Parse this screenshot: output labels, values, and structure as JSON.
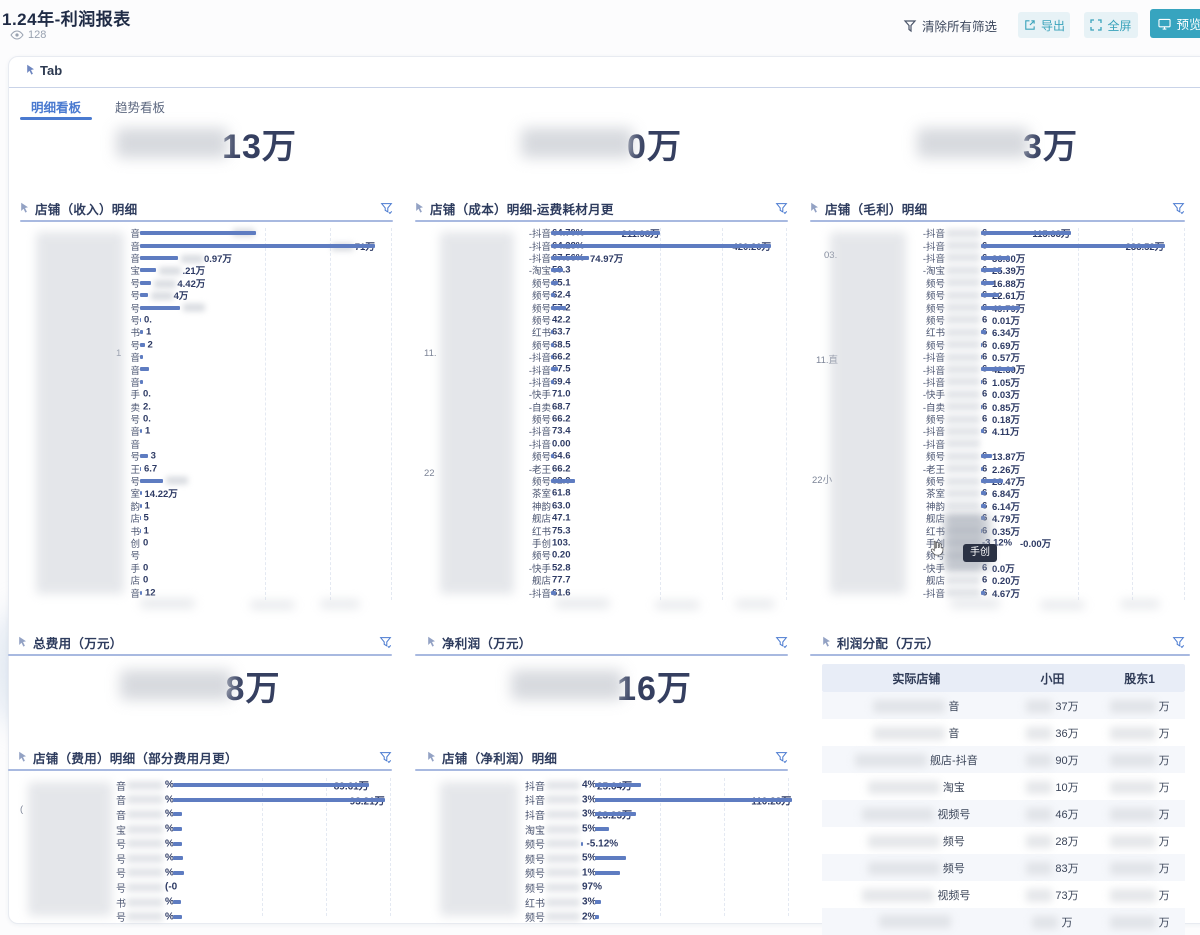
{
  "header": {
    "title": "1.24年-利润报表",
    "views": "128",
    "buttons": {
      "clear": "清除所有筛选",
      "export": "导出",
      "fullscreen": "全屏",
      "preview": "预览"
    }
  },
  "tabs": {
    "section_label": "Tab",
    "items": [
      {
        "label": "明细看板",
        "active": true
      },
      {
        "label": "趋势看板",
        "active": false
      }
    ]
  },
  "stats": {
    "revenue": {
      "suffix": "13万"
    },
    "cost": {
      "suffix": "0万"
    },
    "gross": {
      "suffix": "3万"
    },
    "expense": {
      "title": "总费用（万元）",
      "suffix": "8万"
    },
    "net": {
      "title": "净利润（万元）",
      "suffix": "16万"
    }
  },
  "panels": {
    "revenue": {
      "title": "店铺（收入）明细",
      "type": "bar",
      "axis_fragment": "1",
      "rows": [
        {
          "l": "音",
          "v": "",
          "b": 0.46,
          "vb": true
        },
        {
          "l": "音",
          "v": "71万",
          "b": 0.93,
          "vb": true
        },
        {
          "l": "音",
          "v": "0.97万",
          "b": 0.15,
          "vb": true
        },
        {
          "l": "宝",
          "v": ".21万",
          "b": 0.065,
          "vb": true
        },
        {
          "l": "号",
          "v": "4.42万",
          "b": 0.045,
          "vb": true
        },
        {
          "l": "号",
          "v": "4万",
          "b": 0.03,
          "vb": true
        },
        {
          "l": "号",
          "v": "",
          "b": 0.16,
          "vb": true
        },
        {
          "l": "号",
          "v": "0.",
          "b": 0.004
        },
        {
          "l": "书",
          "v": "1",
          "b": 0.012
        },
        {
          "l": "号",
          "v": "2",
          "b": 0.018
        },
        {
          "l": "音",
          "v": "",
          "b": 0.01
        },
        {
          "l": "音",
          "v": "",
          "b": 0.035
        },
        {
          "l": "音",
          "v": "",
          "b": 0.012
        },
        {
          "l": "手",
          "v": "0.",
          "b": 0
        },
        {
          "l": "卖",
          "v": "2.",
          "b": 0
        },
        {
          "l": "号",
          "v": "0.",
          "b": 0
        },
        {
          "l": "音",
          "v": "1",
          "b": 0.008
        },
        {
          "l": "音",
          "v": "",
          "b": 0
        },
        {
          "l": "号",
          "v": "3",
          "b": 0.03
        },
        {
          "l": "王",
          "v": "6.7",
          "b": 0.004
        },
        {
          "l": "号",
          "v": "",
          "b": 0.09,
          "vb": true
        },
        {
          "l": "室",
          "v": "14.22万",
          "b": 0.006
        },
        {
          "l": "韵",
          "v": "1",
          "b": 0.006
        },
        {
          "l": "店",
          "v": "5",
          "b": 0.002
        },
        {
          "l": "书",
          "v": "1",
          "b": 0.002
        },
        {
          "l": "创",
          "v": "0",
          "b": 0
        },
        {
          "l": "号",
          "v": "",
          "b": 0
        },
        {
          "l": "手",
          "v": "0",
          "b": 0
        },
        {
          "l": "店",
          "v": "0",
          "b": 0
        },
        {
          "l": "音",
          "v": "12",
          "b": 0.008
        }
      ]
    },
    "cost": {
      "title": "店铺（成本）明细-运费耗材月更",
      "type": "bar",
      "axis_fragments": [
        "11.",
        "22"
      ],
      "rows": [
        {
          "l": "-抖音",
          "p": "64.70%",
          "v": "211.98万",
          "b": 0.46
        },
        {
          "l": "-抖音",
          "p": "64.28%",
          "v": "420.20万",
          "b": 0.93
        },
        {
          "l": "-抖音",
          "p": "67.56%",
          "v": "74.97万",
          "b": 0.16
        },
        {
          "l": "-淘宝",
          "p": "59.3",
          "v": "",
          "b": 0.05
        },
        {
          "l": "频号",
          "p": "65.1",
          "v": "",
          "b": 0.03
        },
        {
          "l": "频号",
          "p": "62.4",
          "v": "",
          "b": 0.015
        },
        {
          "l": "频号",
          "p": "57.2",
          "v": "",
          "b": 0.065
        },
        {
          "l": "频号",
          "p": "42.2",
          "v": "",
          "b": 0
        },
        {
          "l": "红书",
          "p": "63.7",
          "v": "",
          "b": 0.008
        },
        {
          "l": "频号",
          "p": "68.5",
          "v": "",
          "b": 0.012
        },
        {
          "l": "-抖音",
          "p": "66.2",
          "v": "",
          "b": 0.008
        },
        {
          "l": "-抖音",
          "p": "67.5",
          "v": "",
          "b": 0.03
        },
        {
          "l": "-抖音",
          "p": "69.4",
          "v": "",
          "b": 0.012
        },
        {
          "l": "-快手",
          "p": "71.0",
          "v": "",
          "b": 0
        },
        {
          "l": "-自卖",
          "p": "68.7",
          "v": "",
          "b": 0
        },
        {
          "l": "频号",
          "p": "66.2",
          "v": "",
          "b": 0
        },
        {
          "l": "-抖音",
          "p": "73.4",
          "v": "",
          "b": 0
        },
        {
          "l": "-抖音",
          "p": "0.00",
          "v": "",
          "b": 0
        },
        {
          "l": "频号",
          "p": "64.6",
          "v": "",
          "b": 0.012
        },
        {
          "l": "-老王",
          "p": "66.2",
          "v": "",
          "b": 0
        },
        {
          "l": "频号",
          "p": "62.0",
          "v": "",
          "b": 0.1
        },
        {
          "l": "茶室",
          "p": "61.8",
          "v": "",
          "b": 0
        },
        {
          "l": "神韵",
          "p": "63.0",
          "v": "",
          "b": 0
        },
        {
          "l": "舰店",
          "p": "47.1",
          "v": "",
          "b": 0
        },
        {
          "l": "红书",
          "p": "75.3",
          "v": "",
          "b": 0
        },
        {
          "l": "手创",
          "p": "103.",
          "v": "",
          "b": 0
        },
        {
          "l": "频号",
          "p": "0.20",
          "v": "",
          "b": 0
        },
        {
          "l": "-快手",
          "p": "52.8",
          "v": "",
          "b": 0
        },
        {
          "l": "舰店",
          "p": "77.7",
          "v": "",
          "b": 0
        },
        {
          "l": "-抖音",
          "p": "61.6",
          "v": "",
          "b": 0.02
        }
      ]
    },
    "gross": {
      "title": "店铺（毛利）明细",
      "type": "bar",
      "axis_fragments": [
        "03.",
        "11.直",
        "22小"
      ],
      "tooltip": "手创",
      "rows": [
        {
          "l": "-抖音",
          "p": "6",
          "v": "115.63万",
          "b": 0.44
        },
        {
          "l": "-抖音",
          "p": "6",
          "v": "233.52万",
          "b": 0.9
        },
        {
          "l": "-抖音",
          "p": "6",
          "v": "36.00万",
          "b": 0.14
        },
        {
          "l": "-淘宝",
          "p": "6",
          "v": "25.39万",
          "b": 0.1
        },
        {
          "l": "频号",
          "p": "6",
          "v": "16.88万",
          "b": 0.065
        },
        {
          "l": "频号",
          "p": "6",
          "v": "22.61万",
          "b": 0.09
        },
        {
          "l": "频号",
          "p": "6",
          "v": "49.79万",
          "b": 0.19
        },
        {
          "l": "频号",
          "p": "6",
          "v": "0.01万",
          "b": 0
        },
        {
          "l": "红书",
          "p": "6",
          "v": "6.34万",
          "b": 0.024
        },
        {
          "l": "频号",
          "p": "6",
          "v": "0.69万",
          "b": 0.003
        },
        {
          "l": "-抖音",
          "p": "6",
          "v": "0.57万",
          "b": 0.002
        },
        {
          "l": "-抖音",
          "p": "6",
          "v": "42.60万",
          "b": 0.16
        },
        {
          "l": "-抖音",
          "p": "6",
          "v": "1.05万",
          "b": 0.004
        },
        {
          "l": "-快手",
          "p": "6",
          "v": "0.03万",
          "b": 0
        },
        {
          "l": "-自卖",
          "p": "6",
          "v": "0.85万",
          "b": 0.003
        },
        {
          "l": "频号",
          "p": "6",
          "v": "0.18万",
          "b": 0
        },
        {
          "l": "-抖音",
          "p": "6",
          "v": "4.11万",
          "b": 0.016
        },
        {
          "l": "-抖音",
          "p": "",
          "v": "",
          "b": 0
        },
        {
          "l": "频号",
          "p": "6",
          "v": "13.87万",
          "b": 0.054
        },
        {
          "l": "-老王",
          "p": "6",
          "v": "2.26万",
          "b": 0.008
        },
        {
          "l": "频号",
          "p": "6",
          "v": "28.47万",
          "b": 0.11
        },
        {
          "l": "茶室",
          "p": "6",
          "v": "6.84万",
          "b": 0.026
        },
        {
          "l": "神韵",
          "p": "6",
          "v": "6.14万",
          "b": 0.024
        },
        {
          "l": "舰店",
          "p": "6",
          "v": "4.79万",
          "b": 0.018
        },
        {
          "l": "红书",
          "p": "6",
          "v": "0.35万",
          "b": 0.001
        },
        {
          "l": "手创",
          "p": "-3.12%",
          "v": "-0.00万",
          "b": 0
        },
        {
          "l": "频号",
          "p": "",
          "v": "",
          "b": 0
        },
        {
          "l": "-快手",
          "p": "6",
          "v": "0.0万",
          "b": 0
        },
        {
          "l": "舰店",
          "p": "6",
          "v": "0.20万",
          "b": 0
        },
        {
          "l": "-抖音",
          "p": "6",
          "v": "4.67万",
          "b": 0.018
        }
      ]
    },
    "expense_detail": {
      "title": "店铺（费用）明细（部分费用月更）",
      "type": "bar",
      "axis_fragment": "(",
      "rows": [
        {
          "l": "音",
          "p": "%",
          "v": "89.61万",
          "b": 0.86
        },
        {
          "l": "音",
          "p": "%",
          "v": "93.21万",
          "b": 0.93
        },
        {
          "l": "音",
          "p": "%",
          "v": "",
          "b": 0.04
        },
        {
          "l": "宝",
          "p": "%",
          "v": "",
          "b": 0.04
        },
        {
          "l": "号",
          "p": "%",
          "v": "",
          "b": 0.04
        },
        {
          "l": "号",
          "p": "%",
          "v": "",
          "b": 0.045
        },
        {
          "l": "号",
          "p": "%",
          "v": "",
          "b": 0.05
        },
        {
          "l": "号",
          "p": "(-0",
          "v": "",
          "b": 0
        },
        {
          "l": "书",
          "p": "%",
          "v": "",
          "b": 0.035
        },
        {
          "l": "号",
          "p": "%",
          "v": "",
          "b": 0.04
        }
      ]
    },
    "net_detail": {
      "title": "店铺（净利润）明细",
      "type": "bar",
      "rows": [
        {
          "l": "抖音",
          "p": "4%",
          "v": "25.64万",
          "b": 0.22
        },
        {
          "l": "抖音",
          "p": "3%",
          "v": "110.28万",
          "b": 0.95
        },
        {
          "l": "抖音",
          "p": "3%",
          "v": "23.23万",
          "b": 0.2
        },
        {
          "l": "淘宝",
          "p": "5%",
          "v": "",
          "b": 0.07
        },
        {
          "l": "频号",
          "p": "",
          "v": "-5.12%",
          "b": 0.012
        },
        {
          "l": "频号",
          "p": "5%",
          "v": "",
          "b": 0.15
        },
        {
          "l": "频号",
          "p": "1%",
          "v": "",
          "b": 0.12
        },
        {
          "l": "频号",
          "p": "97%",
          "v": "",
          "b": 0
        },
        {
          "l": "红书",
          "p": "3%",
          "v": "",
          "b": 0.03
        },
        {
          "l": "频号",
          "p": "2%",
          "v": "",
          "b": 0.02
        }
      ]
    },
    "distribution": {
      "title": "利润分配（万元）",
      "type": "table",
      "columns": [
        "实际店铺",
        "小田",
        "股东1"
      ],
      "rows": [
        {
          "store": "音",
          "a": "37万",
          "b": "万"
        },
        {
          "store": "音",
          "a": "36万",
          "b": "万"
        },
        {
          "store": "舰店-抖音",
          "a": "90万",
          "b": "万"
        },
        {
          "store": "淘宝",
          "a": "10万",
          "b": "万"
        },
        {
          "store": "视频号",
          "a": "46万",
          "b": "万"
        },
        {
          "store": "频号",
          "a": "28万",
          "b": "万"
        },
        {
          "store": "频号",
          "a": "83万",
          "b": "万"
        },
        {
          "store": "视频号",
          "a": "73万",
          "b": "万"
        },
        {
          "store": "",
          "a": "万",
          "b": "万"
        }
      ]
    }
  },
  "colors": {
    "accent": "#4a7ad0",
    "teal": "#37a4bf",
    "bar": "#5e7cc1",
    "title": "#2e3c5e"
  }
}
